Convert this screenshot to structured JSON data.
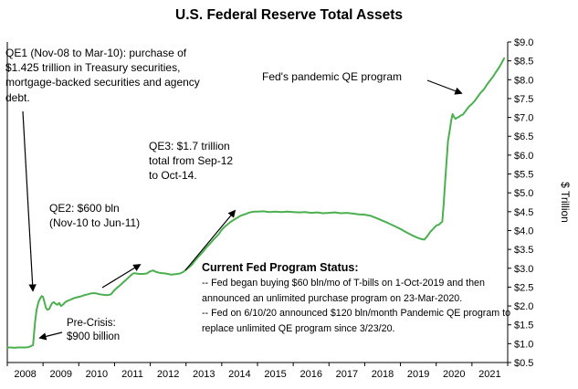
{
  "title": "U.S. Federal Reserve Total Assets",
  "annotations": {
    "qe1": "QE1 (Nov-08 to Mar-10): purchase of $1.425 trillion in Treasury securities, mortgage-backed securities and agency debt.",
    "qe2_line1": "QE2: $600 bln",
    "qe2_line2": "(Nov-10 to Jun-11)",
    "qe3_line1": "QE3:  $1.7 trillion",
    "qe3_line2": "total from Sep-12",
    "qe3_line3": "to Oct-14.",
    "pandemic": "Fed's pandemic QE program",
    "precrisis_line1": "Pre-Crisis:",
    "precrisis_line2": "$900 billion",
    "status_title": "Current Fed Program Status:",
    "status_line1": "-- Fed began buying $60 bln/mo of T-bills on 1-Oct-2019 and then announced an unlimited purchase program on 23-Mar-2020.",
    "status_line2": "-- Fed on 6/10/20 announced $120 bln/month Pandemic QE program to replace unlimited QE program since 3/23/20."
  },
  "chart_data": {
    "type": "line",
    "title": "U.S. Federal Reserve Total Assets",
    "xlabel": "",
    "ylabel": "$ Trillion",
    "x_range": [
      2008,
      2022
    ],
    "y_range": [
      0.5,
      9.0
    ],
    "y_tick_step": 0.5,
    "grid": false,
    "legend": "none",
    "line_color": "#4caf50",
    "axis_color": "#000000",
    "x_tick_labels": [
      "2008",
      "2009",
      "2010",
      "2011",
      "2012",
      "2013",
      "2014",
      "2015",
      "2016",
      "2017",
      "2018",
      "2019",
      "2020",
      "2021"
    ],
    "y_tick_labels": [
      "$0.5",
      "$1.0",
      "$1.5",
      "$2.0",
      "$2.5",
      "$3.0",
      "$3.5",
      "$4.0",
      "$4.5",
      "$5.0",
      "$5.5",
      "$6.0",
      "$6.5",
      "$7.0",
      "$7.5",
      "$8.0",
      "$8.5",
      "$9.0"
    ],
    "series": [
      {
        "points": [
          [
            2008.0,
            0.9
          ],
          [
            2008.1,
            0.9
          ],
          [
            2008.2,
            0.89
          ],
          [
            2008.3,
            0.9
          ],
          [
            2008.4,
            0.9
          ],
          [
            2008.5,
            0.9
          ],
          [
            2008.6,
            0.91
          ],
          [
            2008.67,
            0.94
          ],
          [
            2008.72,
            0.96
          ],
          [
            2008.75,
            1.3
          ],
          [
            2008.78,
            1.6
          ],
          [
            2008.82,
            1.9
          ],
          [
            2008.87,
            2.1
          ],
          [
            2008.92,
            2.2
          ],
          [
            2008.96,
            2.26
          ],
          [
            2009.0,
            2.24
          ],
          [
            2009.04,
            2.1
          ],
          [
            2009.08,
            1.95
          ],
          [
            2009.12,
            1.9
          ],
          [
            2009.17,
            1.92
          ],
          [
            2009.21,
            2.0
          ],
          [
            2009.25,
            2.07
          ],
          [
            2009.3,
            2.1
          ],
          [
            2009.35,
            2.06
          ],
          [
            2009.4,
            2.03
          ],
          [
            2009.45,
            2.08
          ],
          [
            2009.5,
            2.0
          ],
          [
            2009.55,
            2.03
          ],
          [
            2009.6,
            2.08
          ],
          [
            2009.65,
            2.12
          ],
          [
            2009.7,
            2.14
          ],
          [
            2009.75,
            2.16
          ],
          [
            2009.8,
            2.18
          ],
          [
            2009.85,
            2.2
          ],
          [
            2009.9,
            2.22
          ],
          [
            2009.95,
            2.23
          ],
          [
            2010.0,
            2.24
          ],
          [
            2010.08,
            2.26
          ],
          [
            2010.17,
            2.29
          ],
          [
            2010.25,
            2.31
          ],
          [
            2010.33,
            2.33
          ],
          [
            2010.42,
            2.34
          ],
          [
            2010.5,
            2.33
          ],
          [
            2010.58,
            2.31
          ],
          [
            2010.67,
            2.3
          ],
          [
            2010.75,
            2.29
          ],
          [
            2010.83,
            2.29
          ],
          [
            2010.9,
            2.31
          ],
          [
            2011.0,
            2.42
          ],
          [
            2011.08,
            2.49
          ],
          [
            2011.17,
            2.56
          ],
          [
            2011.25,
            2.63
          ],
          [
            2011.33,
            2.7
          ],
          [
            2011.42,
            2.78
          ],
          [
            2011.5,
            2.85
          ],
          [
            2011.55,
            2.87
          ],
          [
            2011.6,
            2.86
          ],
          [
            2011.7,
            2.85
          ],
          [
            2011.8,
            2.85
          ],
          [
            2011.9,
            2.86
          ],
          [
            2012.0,
            2.92
          ],
          [
            2012.08,
            2.94
          ],
          [
            2012.17,
            2.9
          ],
          [
            2012.25,
            2.88
          ],
          [
            2012.33,
            2.87
          ],
          [
            2012.42,
            2.86
          ],
          [
            2012.5,
            2.85
          ],
          [
            2012.58,
            2.83
          ],
          [
            2012.67,
            2.84
          ],
          [
            2012.75,
            2.85
          ],
          [
            2012.83,
            2.86
          ],
          [
            2012.92,
            2.9
          ],
          [
            2013.0,
            2.96
          ],
          [
            2013.08,
            3.02
          ],
          [
            2013.17,
            3.1
          ],
          [
            2013.25,
            3.2
          ],
          [
            2013.33,
            3.29
          ],
          [
            2013.42,
            3.38
          ],
          [
            2013.5,
            3.47
          ],
          [
            2013.58,
            3.56
          ],
          [
            2013.67,
            3.65
          ],
          [
            2013.75,
            3.74
          ],
          [
            2013.83,
            3.82
          ],
          [
            2013.92,
            3.91
          ],
          [
            2014.0,
            4.02
          ],
          [
            2014.08,
            4.1
          ],
          [
            2014.17,
            4.17
          ],
          [
            2014.25,
            4.23
          ],
          [
            2014.33,
            4.28
          ],
          [
            2014.42,
            4.33
          ],
          [
            2014.5,
            4.38
          ],
          [
            2014.58,
            4.41
          ],
          [
            2014.67,
            4.44
          ],
          [
            2014.75,
            4.47
          ],
          [
            2014.83,
            4.49
          ],
          [
            2014.92,
            4.5
          ],
          [
            2015.0,
            4.5
          ],
          [
            2015.17,
            4.51
          ],
          [
            2015.33,
            4.49
          ],
          [
            2015.5,
            4.5
          ],
          [
            2015.67,
            4.49
          ],
          [
            2015.83,
            4.5
          ],
          [
            2016.0,
            4.49
          ],
          [
            2016.17,
            4.48
          ],
          [
            2016.33,
            4.49
          ],
          [
            2016.5,
            4.47
          ],
          [
            2016.67,
            4.48
          ],
          [
            2016.83,
            4.46
          ],
          [
            2017.0,
            4.47
          ],
          [
            2017.17,
            4.48
          ],
          [
            2017.33,
            4.46
          ],
          [
            2017.5,
            4.47
          ],
          [
            2017.67,
            4.45
          ],
          [
            2017.83,
            4.43
          ],
          [
            2018.0,
            4.42
          ],
          [
            2018.17,
            4.39
          ],
          [
            2018.33,
            4.33
          ],
          [
            2018.5,
            4.26
          ],
          [
            2018.67,
            4.19
          ],
          [
            2018.83,
            4.12
          ],
          [
            2019.0,
            4.04
          ],
          [
            2019.17,
            3.95
          ],
          [
            2019.33,
            3.87
          ],
          [
            2019.5,
            3.8
          ],
          [
            2019.6,
            3.77
          ],
          [
            2019.67,
            3.76
          ],
          [
            2019.75,
            3.85
          ],
          [
            2019.83,
            3.96
          ],
          [
            2019.92,
            4.05
          ],
          [
            2020.0,
            4.13
          ],
          [
            2020.08,
            4.16
          ],
          [
            2020.17,
            4.24
          ],
          [
            2020.21,
            4.7
          ],
          [
            2020.25,
            5.3
          ],
          [
            2020.29,
            5.85
          ],
          [
            2020.33,
            6.37
          ],
          [
            2020.38,
            6.66
          ],
          [
            2020.42,
            6.93
          ],
          [
            2020.46,
            7.09
          ],
          [
            2020.5,
            7.01
          ],
          [
            2020.54,
            6.96
          ],
          [
            2020.58,
            6.99
          ],
          [
            2020.63,
            7.01
          ],
          [
            2020.67,
            7.04
          ],
          [
            2020.75,
            7.08
          ],
          [
            2020.83,
            7.18
          ],
          [
            2020.92,
            7.29
          ],
          [
            2021.0,
            7.36
          ],
          [
            2021.08,
            7.44
          ],
          [
            2021.17,
            7.56
          ],
          [
            2021.25,
            7.66
          ],
          [
            2021.33,
            7.74
          ],
          [
            2021.42,
            7.87
          ],
          [
            2021.5,
            7.97
          ],
          [
            2021.58,
            8.07
          ],
          [
            2021.67,
            8.2
          ],
          [
            2021.75,
            8.31
          ],
          [
            2021.83,
            8.44
          ],
          [
            2021.9,
            8.57
          ]
        ]
      }
    ]
  }
}
